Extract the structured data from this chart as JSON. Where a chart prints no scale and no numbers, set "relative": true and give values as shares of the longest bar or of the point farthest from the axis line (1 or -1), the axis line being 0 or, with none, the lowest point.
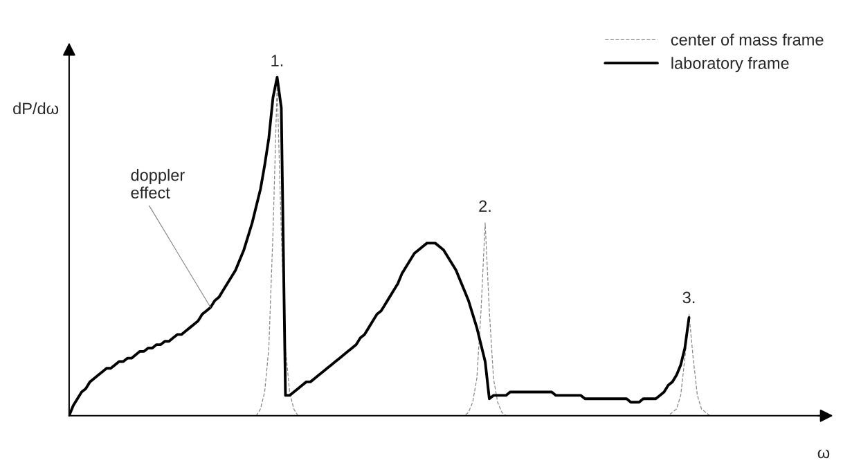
{
  "chart_data": {
    "type": "line",
    "relative": true,
    "ylabel": "dP/dω",
    "legend": "top right",
    "tick_labels": false,
    "categories": [
      null,
      null,
      null,
      null,
      null,
      null,
      null,
      null,
      null,
      null,
      null,
      null,
      null,
      null,
      null,
      null,
      null,
      null,
      null,
      null,
      null,
      null,
      null,
      null,
      null,
      null,
      null,
      null,
      null,
      null,
      null,
      null,
      null,
      null,
      null,
      null,
      null,
      null,
      null,
      null,
      null,
      null,
      null,
      null,
      null,
      null,
      null,
      null,
      null,
      null,
      null,
      null,
      null,
      null,
      null,
      null,
      null,
      null,
      null,
      null,
      null,
      null,
      null,
      null,
      null,
      null,
      null,
      null,
      null,
      null,
      null,
      null,
      null,
      null,
      null,
      null,
      null,
      null,
      null,
      null,
      null,
      null,
      null,
      null,
      null,
      null,
      null,
      null,
      null,
      null,
      null,
      null,
      null,
      null,
      null,
      null,
      null,
      null,
      null,
      null,
      null,
      null,
      null,
      null,
      null,
      null,
      null,
      null,
      null,
      null,
      null,
      null,
      null,
      null,
      null,
      null,
      null,
      null,
      null,
      null,
      null,
      null,
      null,
      null,
      null,
      null,
      null,
      null,
      null,
      null,
      null,
      null,
      null,
      null,
      null,
      null,
      null,
      null,
      null,
      null,
      null,
      null,
      null,
      null,
      null,
      null,
      null,
      null,
      null,
      null,
      null,
      null,
      null,
      null,
      null,
      null
    ],
    "series": [
      {
        "name": "center of mass frame",
        "color": "#888888",
        "line_style": "dashed",
        "values": [
          0,
          0,
          0,
          0,
          0,
          0,
          0,
          0,
          0,
          0,
          0,
          0,
          0,
          0,
          0,
          0,
          0,
          0,
          0,
          0,
          0,
          0,
          0,
          0,
          0,
          0,
          0,
          0,
          0,
          0,
          0,
          0,
          0,
          0,
          0,
          0,
          0,
          0,
          0,
          0,
          0,
          0,
          0,
          0,
          0,
          0,
          0.02,
          0.07,
          0.2,
          0.54,
          0.98,
          0.54,
          0.2,
          0.07,
          0.02,
          0,
          0,
          0,
          0,
          0,
          0,
          0,
          0,
          0,
          0,
          0,
          0,
          0,
          0,
          0,
          0,
          0,
          0,
          0,
          0,
          0,
          0,
          0,
          0,
          0,
          0,
          0,
          0,
          0,
          0,
          0,
          0,
          0,
          0,
          0,
          0,
          0,
          0,
          0,
          0,
          0,
          0.01,
          0.04,
          0.11,
          0.31,
          0.57,
          0.31,
          0.11,
          0.04,
          0.01,
          0,
          0,
          0,
          0,
          0,
          0,
          0,
          0,
          0,
          0,
          0,
          0,
          0,
          0,
          0,
          0,
          0,
          0,
          0,
          0,
          0,
          0,
          0,
          0,
          0,
          0,
          0,
          0,
          0,
          0,
          0,
          0,
          0,
          0,
          0,
          0,
          0,
          0,
          0,
          0,
          0.01,
          0.02,
          0.06,
          0.17,
          0.3,
          0.17,
          0.06,
          0.02,
          0.01,
          0,
          0
        ]
      },
      {
        "name": "laboratory frame",
        "color": "#000000",
        "line_style": "solid",
        "values": [
          0,
          0.03,
          0.05,
          0.07,
          0.08,
          0.1,
          0.11,
          0.12,
          0.13,
          0.14,
          0.14,
          0.15,
          0.16,
          0.16,
          0.17,
          0.17,
          0.18,
          0.19,
          0.19,
          0.2,
          0.2,
          0.21,
          0.21,
          0.22,
          0.22,
          0.23,
          0.24,
          0.24,
          0.25,
          0.26,
          0.27,
          0.28,
          0.3,
          0.31,
          0.32,
          0.34,
          0.35,
          0.37,
          0.39,
          0.41,
          0.43,
          0.46,
          0.49,
          0.53,
          0.57,
          0.62,
          0.67,
          0.74,
          0.82,
          0.94,
          1.0,
          0.91,
          0.06,
          0.06,
          0.07,
          0.08,
          0.09,
          0.1,
          0.1,
          0.11,
          0.12,
          0.13,
          0.14,
          0.15,
          0.16,
          0.17,
          0.18,
          0.19,
          0.2,
          0.21,
          0.23,
          0.24,
          0.26,
          0.28,
          0.3,
          0.31,
          0.33,
          0.35,
          0.37,
          0.39,
          0.42,
          0.44,
          0.46,
          0.48,
          0.49,
          0.5,
          0.51,
          0.51,
          0.51,
          0.5,
          0.49,
          0.47,
          0.45,
          0.43,
          0.4,
          0.37,
          0.34,
          0.3,
          0.26,
          0.21,
          0.16,
          0.05,
          0.06,
          0.06,
          0.06,
          0.06,
          0.07,
          0.07,
          0.07,
          0.07,
          0.07,
          0.07,
          0.07,
          0.07,
          0.07,
          0.07,
          0.07,
          0.06,
          0.06,
          0.06,
          0.06,
          0.06,
          0.06,
          0.06,
          0.05,
          0.05,
          0.05,
          0.05,
          0.05,
          0.05,
          0.05,
          0.05,
          0.05,
          0.05,
          0.05,
          0.04,
          0.04,
          0.04,
          0.05,
          0.05,
          0.05,
          0.05,
          0.06,
          0.07,
          0.09,
          0.1,
          0.12,
          0.15,
          0.2,
          0.29,
          null,
          null,
          null,
          null,
          null,
          null
        ]
      }
    ],
    "annotations": [
      "1.",
      "2.",
      "3.",
      "doppler effect",
      "ω"
    ]
  }
}
